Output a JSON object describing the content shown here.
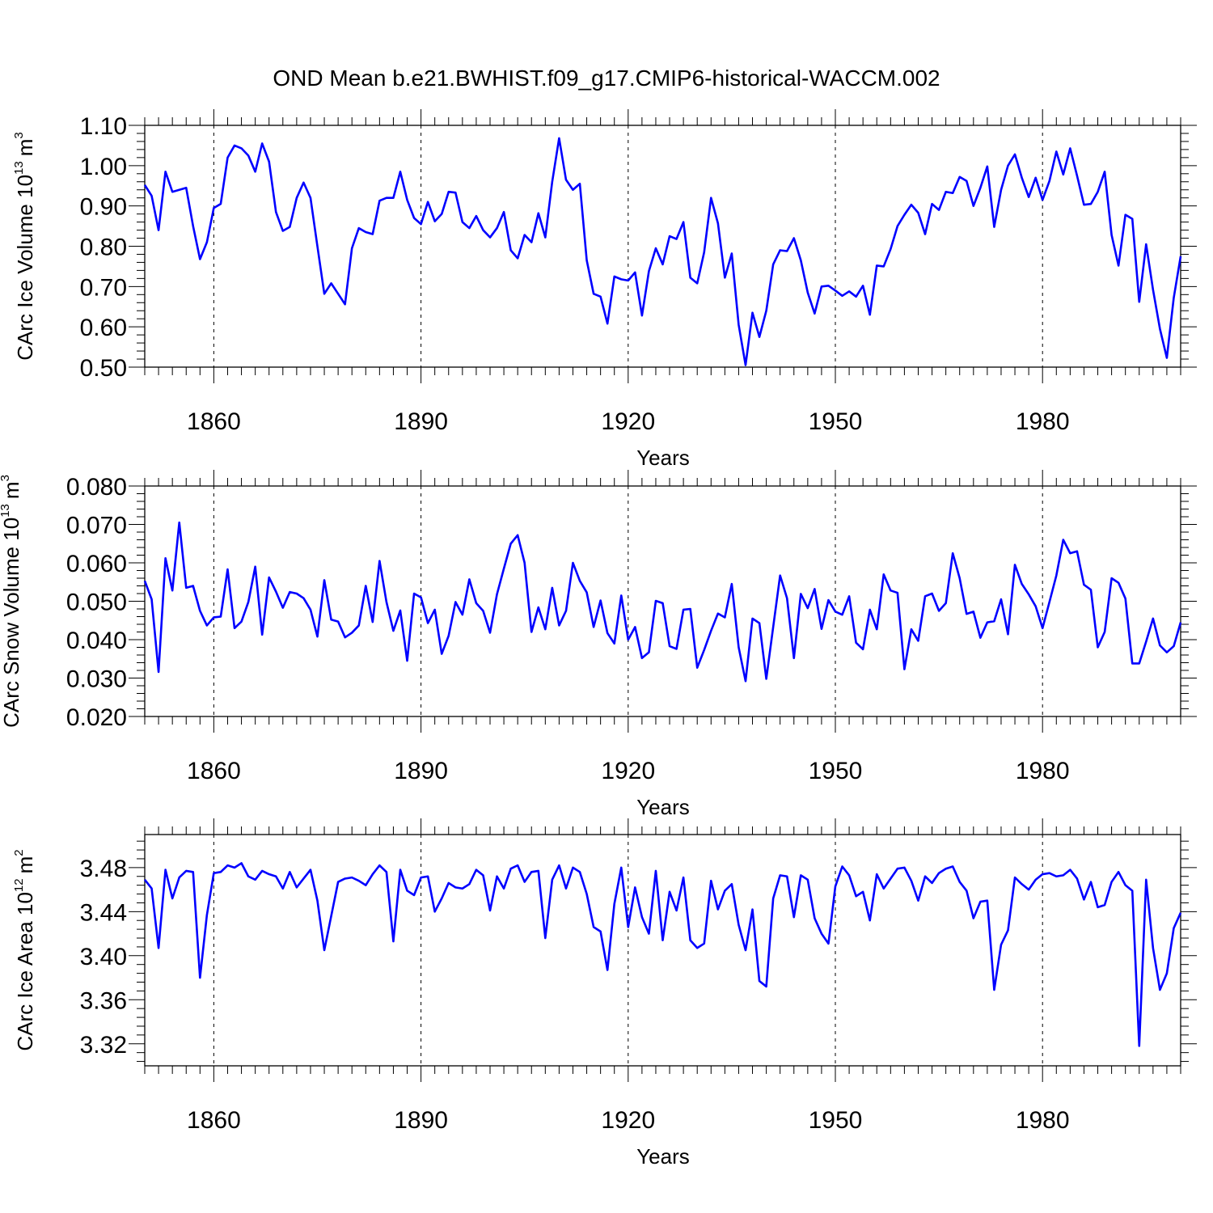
{
  "chart_data": {
    "type": "line",
    "title": "OND Mean b.e21.BWHIST.f09_g17.CMIP6-historical-WACCM.002",
    "line_color": "#0000ff",
    "x_start_year": 1850,
    "x_range": [
      1850,
      2000
    ],
    "x_ticks": [
      1860,
      1890,
      1920,
      1950,
      1980
    ],
    "x_tick_labels": [
      "1860",
      "1890",
      "1920",
      "1950",
      "1980"
    ],
    "grid": "dashed vertical lines at labeled years",
    "panels": [
      {
        "name": "ice-volume",
        "ylabel": "CArc Ice Volume 10",
        "ylabel_exp": "13",
        "ylabel_unit": "m",
        "ylabel_unit_exp": "3",
        "xlabel": "Years",
        "ylim": [
          0.5,
          1.1
        ],
        "y_ticks": [
          0.5,
          0.6,
          0.7,
          0.8,
          0.9,
          1.0,
          1.1
        ],
        "y_tick_labels": [
          "0.50",
          "0.60",
          "0.70",
          "0.80",
          "0.90",
          "1.00",
          "1.10"
        ],
        "values": [
          0.952,
          0.925,
          0.84,
          0.985,
          0.935,
          0.94,
          0.945,
          0.85,
          0.768,
          0.81,
          0.895,
          0.905,
          1.02,
          1.05,
          1.043,
          1.025,
          0.985,
          1.055,
          1.01,
          0.885,
          0.838,
          0.848,
          0.92,
          0.958,
          0.92,
          0.8,
          0.682,
          0.708,
          0.682,
          0.656,
          0.795,
          0.845,
          0.835,
          0.83,
          0.913,
          0.92,
          0.92,
          0.985,
          0.915,
          0.87,
          0.855,
          0.91,
          0.862,
          0.88,
          0.935,
          0.933,
          0.86,
          0.845,
          0.875,
          0.84,
          0.822,
          0.845,
          0.885,
          0.79,
          0.77,
          0.828,
          0.81,
          0.882,
          0.822,
          0.96,
          1.068,
          0.965,
          0.94,
          0.955,
          0.765,
          0.682,
          0.675,
          0.608,
          0.725,
          0.718,
          0.715,
          0.735,
          0.628,
          0.738,
          0.795,
          0.755,
          0.825,
          0.818,
          0.86,
          0.722,
          0.708,
          0.785,
          0.92,
          0.857,
          0.722,
          0.782,
          0.605,
          0.505,
          0.635,
          0.575,
          0.64,
          0.755,
          0.79,
          0.788,
          0.82,
          0.765,
          0.685,
          0.633,
          0.7,
          0.702,
          0.69,
          0.677,
          0.688,
          0.675,
          0.702,
          0.63,
          0.752,
          0.75,
          0.793,
          0.85,
          0.878,
          0.903,
          0.883,
          0.83,
          0.905,
          0.89,
          0.935,
          0.932,
          0.972,
          0.962,
          0.9,
          0.945,
          0.998,
          0.848,
          0.94,
          1.0,
          1.028,
          0.97,
          0.922,
          0.97,
          0.915,
          0.962,
          1.035,
          0.978,
          1.043,
          0.975,
          0.903,
          0.905,
          0.935,
          0.985,
          0.828,
          0.752,
          0.878,
          0.868,
          0.662,
          0.805,
          0.692,
          0.595,
          0.523,
          0.672,
          0.775
        ]
      },
      {
        "name": "snow-volume",
        "ylabel": "CArc Snow Volume 10",
        "ylabel_exp": "13",
        "ylabel_unit": "m",
        "ylabel_unit_exp": "3",
        "xlabel": "Years",
        "ylim": [
          0.02,
          0.08
        ],
        "y_ticks": [
          0.02,
          0.03,
          0.04,
          0.05,
          0.06,
          0.07,
          0.08
        ],
        "y_tick_labels": [
          "0.020",
          "0.030",
          "0.040",
          "0.050",
          "0.060",
          "0.070",
          "0.080"
        ],
        "values": [
          0.0553,
          0.0505,
          0.0316,
          0.0612,
          0.0528,
          0.0705,
          0.0535,
          0.054,
          0.0475,
          0.0437,
          0.0458,
          0.046,
          0.0583,
          0.043,
          0.0447,
          0.0498,
          0.059,
          0.0413,
          0.0562,
          0.0525,
          0.0483,
          0.0524,
          0.052,
          0.0508,
          0.0478,
          0.0408,
          0.0555,
          0.0452,
          0.0447,
          0.0406,
          0.0418,
          0.0437,
          0.054,
          0.0446,
          0.0605,
          0.0498,
          0.0423,
          0.0476,
          0.0345,
          0.052,
          0.051,
          0.0443,
          0.0478,
          0.0363,
          0.041,
          0.0498,
          0.0465,
          0.0557,
          0.0495,
          0.0475,
          0.0418,
          0.0518,
          0.0585,
          0.065,
          0.0672,
          0.06,
          0.042,
          0.0484,
          0.0427,
          0.0535,
          0.0437,
          0.0475,
          0.06,
          0.0553,
          0.0523,
          0.0433,
          0.0502,
          0.0417,
          0.039,
          0.0515,
          0.04,
          0.0433,
          0.0352,
          0.0367,
          0.0501,
          0.0495,
          0.0383,
          0.0376,
          0.0478,
          0.048,
          0.0327,
          0.0373,
          0.0423,
          0.0468,
          0.0458,
          0.0545,
          0.038,
          0.0292,
          0.0455,
          0.0443,
          0.0298,
          0.0433,
          0.0567,
          0.0508,
          0.0352,
          0.0519,
          0.0482,
          0.0532,
          0.0428,
          0.0503,
          0.0473,
          0.0465,
          0.0513,
          0.0392,
          0.0375,
          0.0478,
          0.0427,
          0.057,
          0.0528,
          0.0522,
          0.0323,
          0.0427,
          0.0397,
          0.0513,
          0.052,
          0.0475,
          0.0495,
          0.0625,
          0.056,
          0.0467,
          0.0473,
          0.0405,
          0.0445,
          0.0448,
          0.0505,
          0.0414,
          0.0595,
          0.0545,
          0.0518,
          0.0487,
          0.043,
          0.0498,
          0.0567,
          0.066,
          0.0625,
          0.063,
          0.0543,
          0.053,
          0.038,
          0.042,
          0.056,
          0.0548,
          0.0507,
          0.0338,
          0.0338,
          0.0395,
          0.0455,
          0.0385,
          0.0367,
          0.0383,
          0.0445
        ]
      },
      {
        "name": "ice-area",
        "ylabel": "CArc Ice Area 10",
        "ylabel_exp": "12",
        "ylabel_unit": "m",
        "ylabel_unit_exp": "2",
        "xlabel": "Years",
        "ylim": [
          3.3,
          3.51
        ],
        "y_ticks": [
          3.32,
          3.36,
          3.4,
          3.44,
          3.48
        ],
        "y_tick_labels": [
          "3.32",
          "3.36",
          "3.40",
          "3.44",
          "3.48"
        ],
        "values": [
          3.469,
          3.461,
          3.407,
          3.478,
          3.452,
          3.471,
          3.477,
          3.476,
          3.38,
          3.437,
          3.475,
          3.476,
          3.482,
          3.48,
          3.484,
          3.472,
          3.469,
          3.477,
          3.474,
          3.472,
          3.461,
          3.476,
          3.462,
          3.47,
          3.478,
          3.45,
          3.405,
          3.436,
          3.467,
          3.47,
          3.471,
          3.468,
          3.464,
          3.474,
          3.482,
          3.476,
          3.413,
          3.478,
          3.459,
          3.455,
          3.471,
          3.472,
          3.44,
          3.452,
          3.466,
          3.462,
          3.461,
          3.465,
          3.478,
          3.473,
          3.441,
          3.472,
          3.461,
          3.479,
          3.482,
          3.467,
          3.476,
          3.477,
          3.416,
          3.469,
          3.482,
          3.461,
          3.48,
          3.476,
          3.456,
          3.426,
          3.422,
          3.387,
          3.447,
          3.48,
          3.426,
          3.462,
          3.435,
          3.42,
          3.477,
          3.414,
          3.458,
          3.441,
          3.471,
          3.414,
          3.407,
          3.411,
          3.468,
          3.442,
          3.459,
          3.465,
          3.428,
          3.405,
          3.442,
          3.377,
          3.372,
          3.452,
          3.473,
          3.472,
          3.435,
          3.473,
          3.469,
          3.434,
          3.42,
          3.411,
          3.463,
          3.481,
          3.473,
          3.454,
          3.458,
          3.432,
          3.474,
          3.461,
          3.47,
          3.479,
          3.48,
          3.468,
          3.45,
          3.472,
          3.466,
          3.475,
          3.479,
          3.481,
          3.467,
          3.459,
          3.434,
          3.449,
          3.45,
          3.369,
          3.41,
          3.423,
          3.471,
          3.465,
          3.46,
          3.469,
          3.474,
          3.475,
          3.472,
          3.473,
          3.478,
          3.47,
          3.451,
          3.467,
          3.444,
          3.446,
          3.467,
          3.476,
          3.464,
          3.459,
          3.318,
          3.469,
          3.407,
          3.369,
          3.384,
          3.425,
          3.439
        ]
      }
    ]
  }
}
